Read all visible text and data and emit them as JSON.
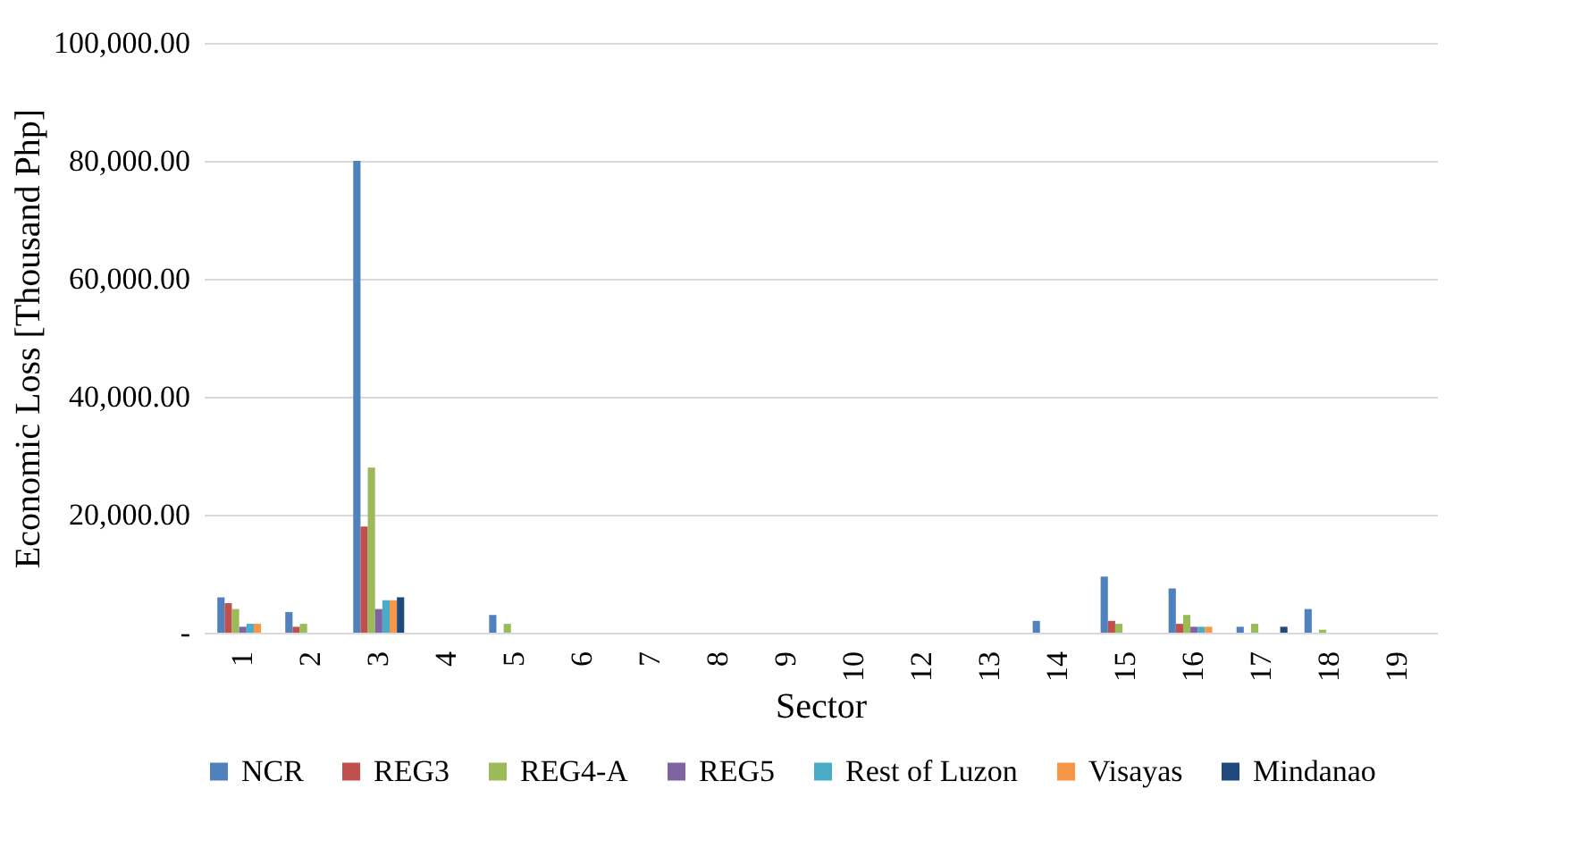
{
  "chart_data": {
    "type": "bar",
    "xlabel": "Sector",
    "ylabel": "Economic Loss [Thousand Php]",
    "categories": [
      "1",
      "2",
      "3",
      "4",
      "5",
      "6",
      "7",
      "8",
      "9",
      "10",
      "12",
      "13",
      "14",
      "15",
      "16",
      "17",
      "18",
      "19"
    ],
    "series": [
      {
        "name": "NCR",
        "color": "#4f81bd",
        "values": [
          6000,
          3500,
          80000,
          0,
          3000,
          0,
          0,
          0,
          0,
          0,
          0,
          0,
          2000,
          9500,
          7500,
          1000,
          4000,
          0
        ]
      },
      {
        "name": "REG3",
        "color": "#c0504d",
        "values": [
          5000,
          1000,
          18000,
          0,
          0,
          0,
          0,
          0,
          0,
          0,
          0,
          0,
          0,
          2000,
          1500,
          0,
          0,
          0
        ]
      },
      {
        "name": "REG4-A",
        "color": "#9bbb59",
        "values": [
          4000,
          1500,
          28000,
          0,
          1500,
          0,
          0,
          0,
          0,
          0,
          0,
          0,
          0,
          1500,
          3000,
          1500,
          500,
          0
        ]
      },
      {
        "name": "REG5",
        "color": "#8064a2",
        "values": [
          1000,
          0,
          4000,
          0,
          0,
          0,
          0,
          0,
          0,
          0,
          0,
          0,
          0,
          0,
          1000,
          0,
          0,
          0
        ]
      },
      {
        "name": "Rest of Luzon",
        "color": "#4bacc6",
        "values": [
          1500,
          0,
          5500,
          0,
          0,
          0,
          0,
          0,
          0,
          0,
          0,
          0,
          0,
          0,
          1000,
          0,
          0,
          0
        ]
      },
      {
        "name": "Visayas",
        "color": "#f79646",
        "values": [
          1500,
          0,
          5500,
          0,
          0,
          0,
          0,
          0,
          0,
          0,
          0,
          0,
          0,
          0,
          1000,
          0,
          0,
          0
        ]
      },
      {
        "name": "Mindanao",
        "color": "#1f497d",
        "values": [
          0,
          0,
          6000,
          0,
          0,
          0,
          0,
          0,
          0,
          0,
          0,
          0,
          0,
          0,
          0,
          1000,
          0,
          0
        ]
      }
    ],
    "ylim": [
      0,
      100000
    ],
    "yticks": [
      {
        "value": 0,
        "label": "-"
      },
      {
        "value": 20000,
        "label": "20,000.00"
      },
      {
        "value": 40000,
        "label": "40,000.00"
      },
      {
        "value": 60000,
        "label": "60,000.00"
      },
      {
        "value": 80000,
        "label": "80,000.00"
      },
      {
        "value": 100000,
        "label": "100,000.00"
      }
    ],
    "grid": "y",
    "legend": "bottom"
  }
}
